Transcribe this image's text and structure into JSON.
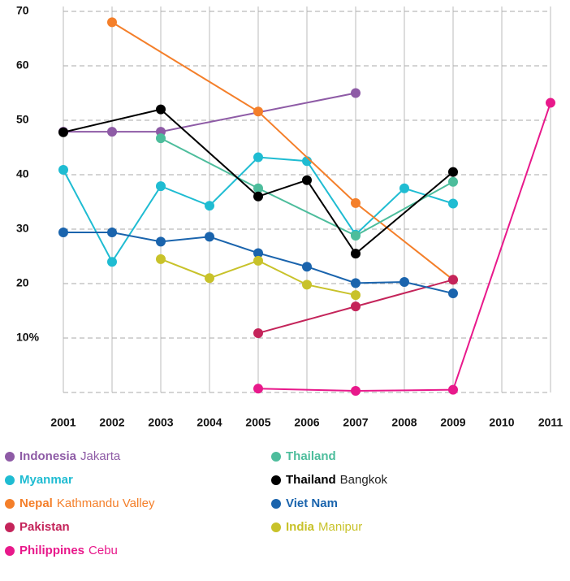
{
  "chart_data": {
    "type": "line",
    "xlim": [
      2001,
      2011
    ],
    "xticks": [
      2001,
      2002,
      2003,
      2004,
      2005,
      2006,
      2007,
      2008,
      2009,
      2010,
      2011
    ],
    "ylim": [
      0,
      70
    ],
    "yticks": [
      {
        "value": 10,
        "label": "10%"
      },
      20,
      30,
      40,
      50,
      60,
      70
    ],
    "grid": true,
    "series": [
      {
        "name": "Indonesia",
        "region": "Jakarta",
        "color": "#8e5ba6",
        "x": [
          2001,
          2002,
          2003,
          2007
        ],
        "values": [
          47.9,
          47.9,
          47.9,
          55
        ]
      },
      {
        "name": "Myanmar",
        "color": "#1fbcd2",
        "x": [
          2001,
          2002,
          2003,
          2004,
          2005,
          2006,
          2007,
          2008,
          2009
        ],
        "values": [
          40.9,
          24,
          37.9,
          34.3,
          43.2,
          42.5,
          29,
          37.5,
          34.7
        ]
      },
      {
        "name": "Nepal",
        "region": "Kathmandu Valley",
        "color": "#f47f2a",
        "x": [
          2002,
          2005,
          2007,
          2009
        ],
        "values": [
          68,
          51.6,
          34.8,
          20.7
        ]
      },
      {
        "name": "Pakistan",
        "color": "#c4245a",
        "x": [
          2005,
          2007,
          2009
        ],
        "values": [
          10.9,
          15.8,
          20.7
        ]
      },
      {
        "name": "Philippines",
        "region": "Cebu",
        "color": "#e8198b",
        "x": [
          2005,
          2007,
          2009,
          2011
        ],
        "values": [
          0.7,
          0.3,
          0.5,
          53.2
        ]
      },
      {
        "name": "Thailand",
        "color": "#4dbd9c",
        "x": [
          2003,
          2005,
          2007,
          2009
        ],
        "values": [
          46.7,
          37.5,
          28.8,
          38.7
        ]
      },
      {
        "name": "Thailand",
        "region": "Bangkok",
        "color": "#000000",
        "x": [
          2001,
          2003,
          2005,
          2006,
          2007,
          2009
        ],
        "values": [
          47.8,
          52,
          36,
          39,
          25.5,
          40.5
        ]
      },
      {
        "name": "Viet Nam",
        "color": "#1a64ad",
        "x": [
          2001,
          2002,
          2003,
          2004,
          2005,
          2006,
          2007,
          2008,
          2009
        ],
        "values": [
          29.4,
          29.4,
          27.7,
          28.6,
          25.6,
          23.1,
          20.1,
          20.3,
          18.2
        ]
      },
      {
        "name": "India",
        "region": "Manipur",
        "color": "#c8c22a",
        "x": [
          2003,
          2004,
          2005,
          2006,
          2007
        ],
        "values": [
          24.5,
          21,
          24.2,
          19.8,
          17.9
        ]
      }
    ]
  }
}
